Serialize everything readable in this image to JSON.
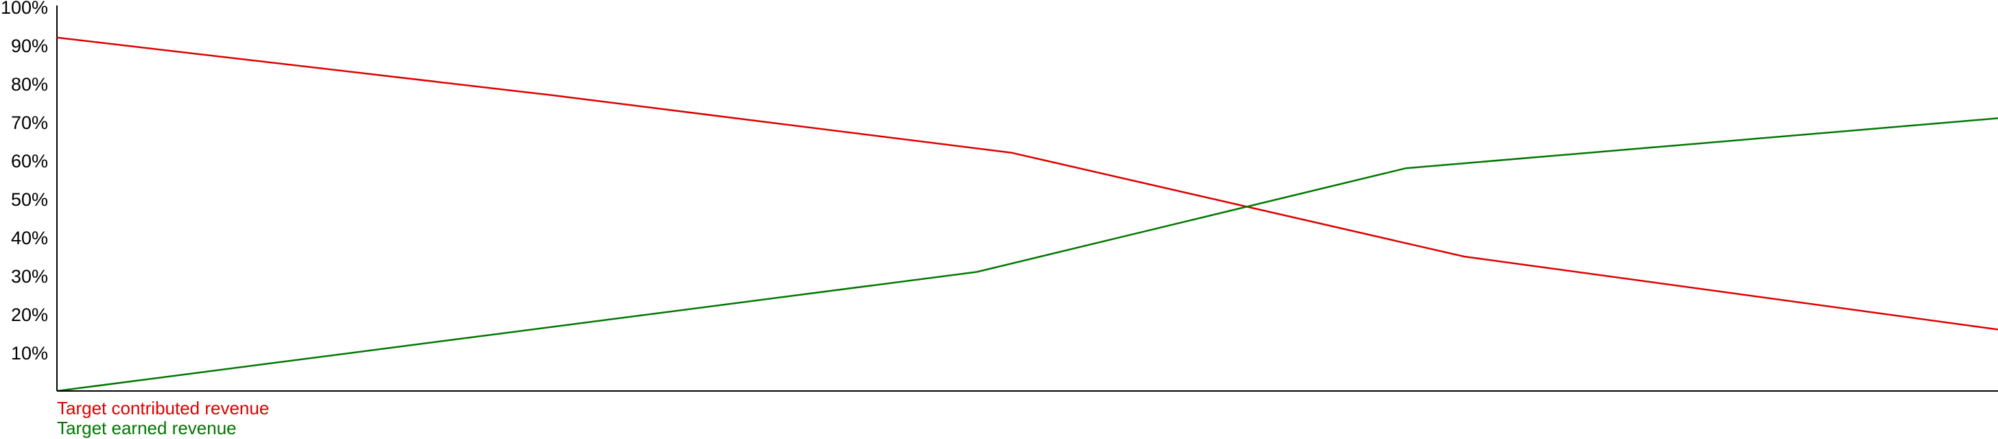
{
  "chart_data": {
    "type": "line",
    "title": "",
    "xlabel": "",
    "ylabel": "",
    "ylim": [
      0,
      100
    ],
    "y_ticks": [
      10,
      20,
      30,
      40,
      50,
      60,
      70,
      80,
      90,
      100
    ],
    "y_tick_labels": [
      "10%",
      "20%",
      "30%",
      "40%",
      "50%",
      "60%",
      "70%",
      "80%",
      "90%",
      "100%"
    ],
    "x_tick_labels": [],
    "grid": false,
    "legend_position": "bottom-left",
    "series": [
      {
        "name": "Target contributed revenue",
        "color": "#dd0000",
        "x": [
          0,
          0.255,
          0.492,
          0.725,
          1.0
        ],
        "values": [
          92,
          77,
          62,
          35,
          16
        ]
      },
      {
        "name": "Target earned revenue",
        "color": "#007700",
        "x": [
          0,
          0.474,
          0.695,
          1.0
        ],
        "values": [
          0,
          31,
          58,
          71
        ]
      }
    ]
  }
}
